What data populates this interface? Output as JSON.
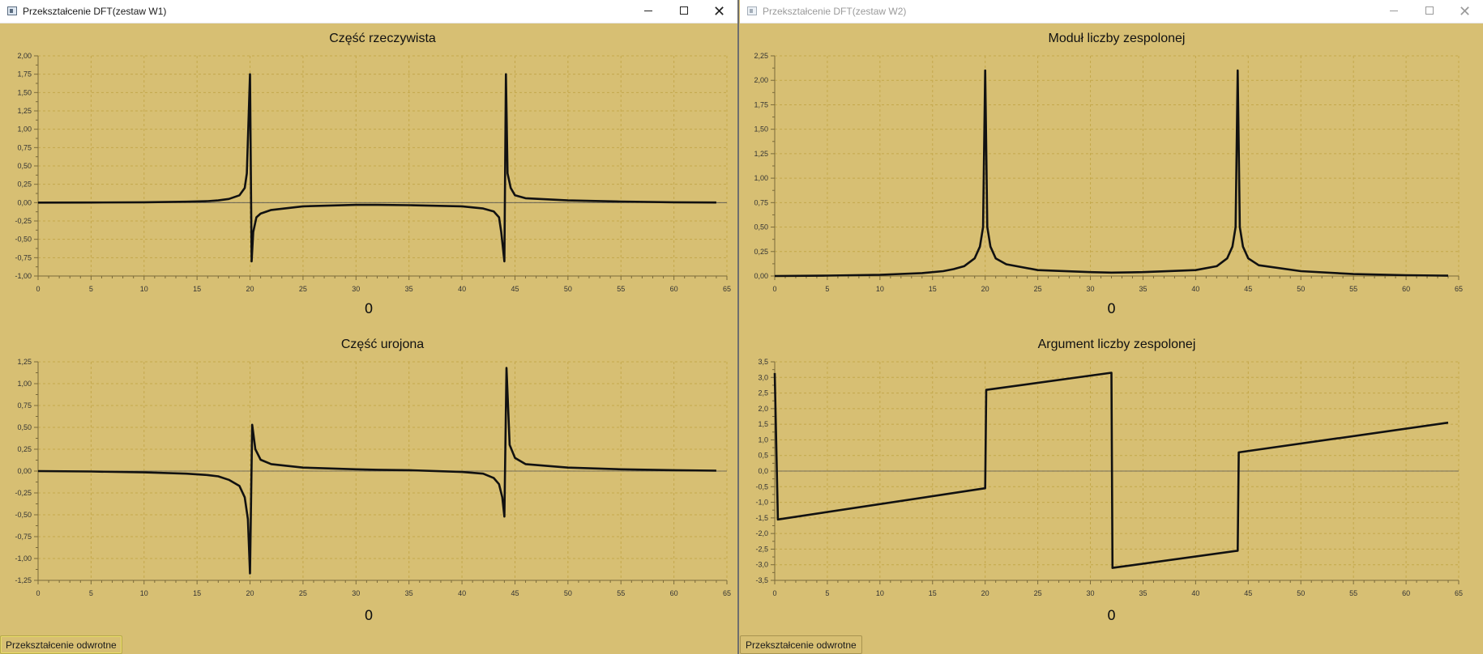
{
  "windows": [
    {
      "title": "Przekształcenie DFT(zestaw W1)",
      "button": "Przekształcenie odwrotne",
      "active": true,
      "charts": [
        {
          "type": "line",
          "title": "Część rzeczywista",
          "slider_value": "0",
          "xlim": [
            0,
            65
          ],
          "ylim": [
            -1.0,
            2.0
          ],
          "xticks": [
            0,
            5,
            10,
            15,
            20,
            25,
            30,
            35,
            40,
            45,
            50,
            55,
            60,
            65
          ],
          "yticks": [
            -1.0,
            -0.75,
            -0.5,
            -0.25,
            0,
            0.25,
            0.5,
            0.75,
            1.0,
            1.25,
            1.5,
            1.75,
            2.0
          ],
          "decimals": 2,
          "x": [
            0,
            5,
            10,
            14,
            16,
            17,
            18,
            19,
            19.5,
            19.7,
            20,
            20.15,
            20.3,
            20.6,
            21,
            22,
            25,
            30,
            32,
            35,
            40,
            42,
            43,
            43.5,
            43.7,
            44,
            44.15,
            44.3,
            44.6,
            45,
            46,
            50,
            55,
            60,
            64
          ],
          "y": [
            0.0,
            0.002,
            0.005,
            0.013,
            0.02,
            0.03,
            0.05,
            0.1,
            0.2,
            0.4,
            1.75,
            -0.8,
            -0.4,
            -0.2,
            -0.15,
            -0.1,
            -0.05,
            -0.03,
            -0.03,
            -0.035,
            -0.05,
            -0.08,
            -0.12,
            -0.2,
            -0.4,
            -0.8,
            1.75,
            0.4,
            0.2,
            0.1,
            0.06,
            0.03,
            0.015,
            0.005,
            0.002
          ]
        },
        {
          "type": "line",
          "title": "Część urojona",
          "slider_value": "0",
          "xlim": [
            0,
            65
          ],
          "ylim": [
            -1.25,
            1.25
          ],
          "xticks": [
            0,
            5,
            10,
            15,
            20,
            25,
            30,
            35,
            40,
            45,
            50,
            55,
            60,
            65
          ],
          "yticks": [
            -1.25,
            -1.0,
            -0.75,
            -0.5,
            -0.25,
            0,
            0.25,
            0.5,
            0.75,
            1.0,
            1.25
          ],
          "decimals": 2,
          "x": [
            0,
            5,
            10,
            14,
            16,
            17,
            18,
            19,
            19.5,
            19.8,
            20,
            20.2,
            20.5,
            21,
            22,
            25,
            30,
            32,
            35,
            40,
            42,
            43,
            43.5,
            43.8,
            44,
            44.2,
            44.5,
            45,
            46,
            50,
            55,
            60,
            64
          ],
          "y": [
            0.0,
            -0.005,
            -0.015,
            -0.03,
            -0.045,
            -0.06,
            -0.1,
            -0.17,
            -0.3,
            -0.55,
            -1.17,
            0.53,
            0.25,
            0.13,
            0.08,
            0.04,
            0.02,
            0.015,
            0.01,
            -0.01,
            -0.03,
            -0.08,
            -0.15,
            -0.3,
            -0.52,
            1.18,
            0.3,
            0.15,
            0.08,
            0.04,
            0.02,
            0.01,
            0.005
          ]
        }
      ]
    },
    {
      "title": "Przekształcenie DFT(zestaw W2)",
      "button": "Przekształcenie odwrotne",
      "active": false,
      "charts": [
        {
          "type": "line",
          "title": "Moduł liczby zespolonej",
          "slider_value": "0",
          "xlim": [
            0,
            65
          ],
          "ylim": [
            0,
            2.25
          ],
          "xticks": [
            0,
            5,
            10,
            15,
            20,
            25,
            30,
            35,
            40,
            45,
            50,
            55,
            60,
            65
          ],
          "yticks": [
            0,
            0.25,
            0.5,
            0.75,
            1.0,
            1.25,
            1.5,
            1.75,
            2.0,
            2.25
          ],
          "decimals": 2,
          "x": [
            0,
            5,
            10,
            14,
            16,
            17,
            18,
            19,
            19.5,
            19.8,
            20,
            20.2,
            20.5,
            21,
            22,
            25,
            30,
            32,
            35,
            40,
            42,
            43,
            43.5,
            43.8,
            44,
            44.2,
            44.5,
            45,
            46,
            50,
            55,
            60,
            64
          ],
          "y": [
            0.0,
            0.004,
            0.012,
            0.03,
            0.05,
            0.07,
            0.1,
            0.18,
            0.3,
            0.5,
            2.1,
            0.5,
            0.3,
            0.18,
            0.12,
            0.06,
            0.04,
            0.035,
            0.04,
            0.06,
            0.1,
            0.18,
            0.3,
            0.5,
            2.1,
            0.5,
            0.3,
            0.18,
            0.11,
            0.05,
            0.02,
            0.008,
            0.003
          ]
        },
        {
          "type": "line",
          "title": "Argument liczby zespolonej",
          "slider_value": "0",
          "xlim": [
            0,
            65
          ],
          "ylim": [
            -3.5,
            3.5
          ],
          "xticks": [
            0,
            5,
            10,
            15,
            20,
            25,
            30,
            35,
            40,
            45,
            50,
            55,
            60,
            65
          ],
          "yticks": [
            -3.5,
            -3.0,
            -2.5,
            -2.0,
            -1.5,
            -1.0,
            -0.5,
            0,
            0.5,
            1.0,
            1.5,
            2.0,
            2.5,
            3.0,
            3.5
          ],
          "decimals": 1,
          "x": [
            0,
            0.3,
            20,
            20.1,
            32,
            32.1,
            44,
            44.1,
            64
          ],
          "y": [
            3.14,
            -1.55,
            -0.55,
            2.6,
            3.15,
            -3.1,
            -2.55,
            0.6,
            1.55
          ]
        }
      ]
    }
  ]
}
